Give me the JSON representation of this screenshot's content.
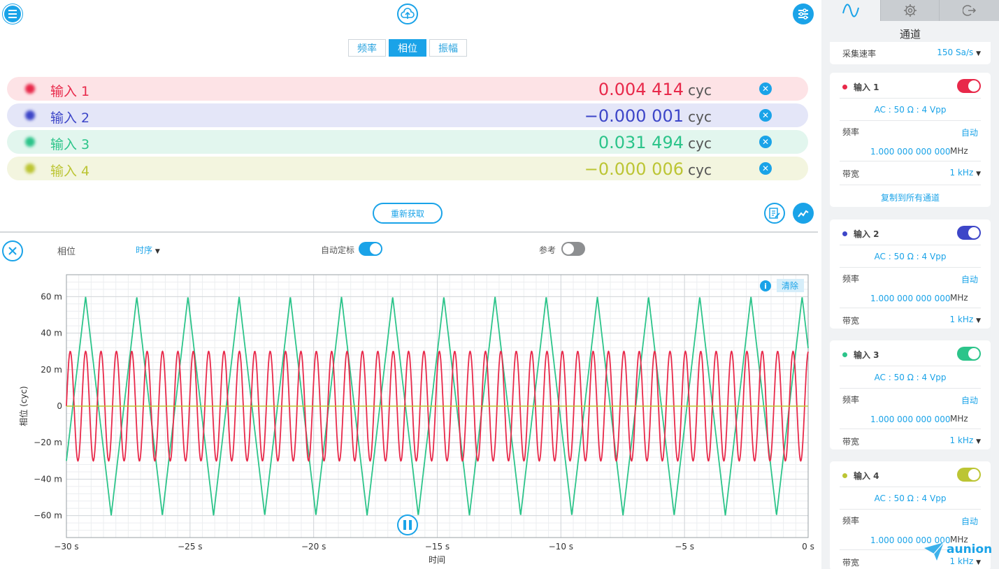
{
  "tabs": [
    {
      "label": "频率",
      "active": false
    },
    {
      "label": "相位",
      "active": true
    },
    {
      "label": "振幅",
      "active": false
    }
  ],
  "readings": [
    {
      "name": "输入 1",
      "value": "0.004 414",
      "unit": "cyc",
      "color": "#e8294a",
      "bg": "#fde3e6"
    },
    {
      "name": "输入 2",
      "value": "−0.000 001",
      "unit": "cyc",
      "color": "#3d46c8",
      "bg": "#e4e6f8"
    },
    {
      "name": "输入 3",
      "value": "0.031 494",
      "unit": "cyc",
      "color": "#2cc48a",
      "bg": "#e2f6ee"
    },
    {
      "name": "输入 4",
      "value": "−0.000 006",
      "unit": "cyc",
      "color": "#bcc534",
      "bg": "#f3f5df"
    }
  ],
  "refresh_label": "重新获取",
  "controls": {
    "mode_label": "相位",
    "order_label": "时序",
    "autoscale_label": "自动定标",
    "reference_label": "参考",
    "clear_label": "清除"
  },
  "chart_data": {
    "type": "line",
    "xlabel": "时间",
    "ylabel": "相位 (cyc)",
    "xlim": [
      -30,
      0
    ],
    "ylim": [
      -0.072,
      0.072
    ],
    "x_ticks": [
      "−30 s",
      "−25 s",
      "−20 s",
      "−15 s",
      "−10 s",
      "−5 s",
      "0 s"
    ],
    "x_tick_values": [
      -30,
      -25,
      -20,
      -15,
      -10,
      -5,
      0
    ],
    "y_ticks": [
      "60 m",
      "40 m",
      "20 m",
      "0",
      "−20 m",
      "−40 m",
      "−60 m"
    ],
    "y_tick_values": [
      0.06,
      0.04,
      0.02,
      0,
      -0.02,
      -0.04,
      -0.06
    ],
    "grid": true,
    "series": [
      {
        "color": "#2cc48a",
        "shape": "triangle",
        "amplitude": 0.06,
        "period": 2.07
      },
      {
        "color": "#e8294a",
        "shape": "sine",
        "amplitude": 0.03,
        "period": 0.622
      },
      {
        "color": "#bcc534",
        "shape": "flat",
        "amplitude": 0,
        "period": 0
      }
    ]
  },
  "sidebar": {
    "title": "通道",
    "sample_rate_label": "采集速率",
    "sample_rate_value": "150 Sa/s",
    "channels": [
      {
        "name": "输入 1",
        "color": "#e8294a",
        "coupling": "AC : 50 Ω : 4 Vpp",
        "freq_label": "频率",
        "freq_mode": "自动",
        "freq_value": "1.000 000 000 000",
        "freq_unit": "MHz",
        "bw_label": "带宽",
        "bw_value": "1 kHz",
        "copy_label": "复制到所有通道"
      },
      {
        "name": "输入 2",
        "color": "#3d46c8",
        "coupling": "AC : 50 Ω : 4 Vpp",
        "freq_label": "频率",
        "freq_mode": "自动",
        "freq_value": "1.000 000 000 000",
        "freq_unit": "MHz",
        "bw_label": "带宽",
        "bw_value": "1 kHz"
      },
      {
        "name": "输入 3",
        "color": "#2cc48a",
        "coupling": "AC : 50 Ω : 4 Vpp",
        "freq_label": "频率",
        "freq_mode": "自动",
        "freq_value": "1.000 000 000 000",
        "freq_unit": "MHz",
        "bw_label": "带宽",
        "bw_value": "1 kHz"
      },
      {
        "name": "输入 4",
        "color": "#bcc534",
        "coupling": "AC : 50 Ω : 4 Vpp",
        "freq_label": "频率",
        "freq_mode": "自动",
        "freq_value": "1.000 000 000 000",
        "freq_unit": "MHz",
        "bw_label": "带宽",
        "bw_value": "1 kHz"
      }
    ]
  },
  "logo_text": "aunion"
}
